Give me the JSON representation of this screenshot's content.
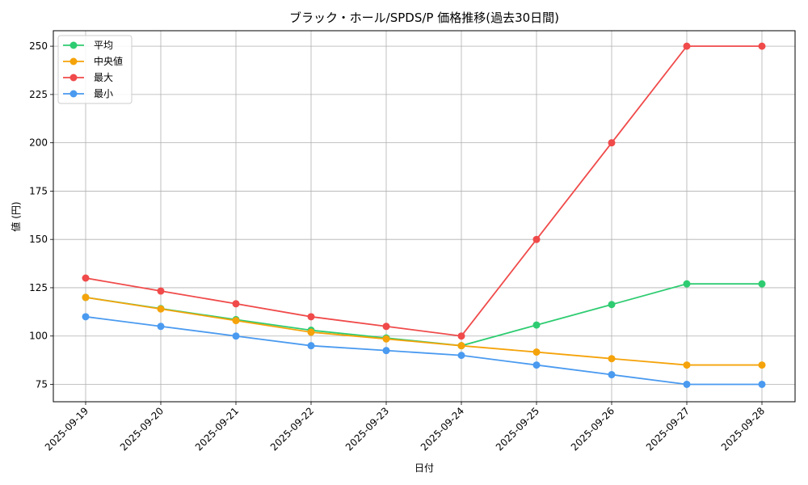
{
  "chart_data": {
    "type": "line",
    "title": "ブラック・ホール/SPDS/P 価格推移(過去30日間)",
    "xlabel": "日付",
    "ylabel": "値 (円)",
    "categories": [
      "2025-09-19",
      "2025-09-20",
      "2025-09-21",
      "2025-09-22",
      "2025-09-23",
      "2025-09-24",
      "2025-09-25",
      "2025-09-26",
      "2025-09-27",
      "2025-09-28"
    ],
    "ylim": [
      66,
      258
    ],
    "yticks": [
      75,
      100,
      125,
      150,
      175,
      200,
      225,
      250
    ],
    "grid": true,
    "legend_position": "top-left",
    "series": [
      {
        "name": "平均",
        "color": "#2ecc71",
        "values": [
          120,
          114.2,
          108.5,
          103,
          99,
          95,
          105.7,
          116.3,
          127,
          127
        ]
      },
      {
        "name": "中央値",
        "color": "#f5a30a",
        "values": [
          120,
          114,
          108,
          102,
          98.5,
          95,
          91.7,
          88.3,
          85,
          85
        ]
      },
      {
        "name": "最大",
        "color": "#f04a4a",
        "values": [
          130,
          123.3,
          116.7,
          110,
          105,
          100,
          150,
          200,
          250,
          250
        ]
      },
      {
        "name": "最小",
        "color": "#4a9af0",
        "values": [
          110,
          105,
          100,
          95,
          92.5,
          90,
          85,
          80,
          75,
          75
        ]
      }
    ]
  }
}
